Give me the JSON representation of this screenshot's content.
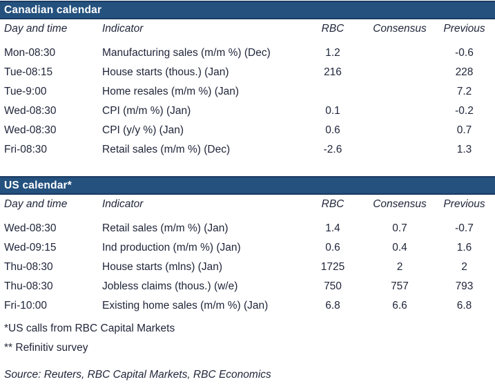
{
  "colors": {
    "bar_fill": "#24517E",
    "bar_border": "#1A3A61",
    "text": "#20263A",
    "bar_title_text": "#FFFFFF"
  },
  "canadian": {
    "title": "Canadian calendar",
    "columns": {
      "day": "Day and time",
      "indicator": "Indicator",
      "rbc": "RBC",
      "consensus": "Consensus",
      "previous": "Previous"
    },
    "rows": [
      {
        "day": "Mon-08:30",
        "indicator": "Manufacturing sales (m/m %) (Dec)",
        "rbc": "1.2",
        "consensus": "",
        "previous": "-0.6"
      },
      {
        "day": "Tue-08:15",
        "indicator": "House starts (thous.) (Jan)",
        "rbc": "216",
        "consensus": "",
        "previous": "228"
      },
      {
        "day": "Tue-9:00",
        "indicator": "Home resales (m/m %) (Jan)",
        "rbc": "",
        "consensus": "",
        "previous": "7.2"
      },
      {
        "day": "Wed-08:30",
        "indicator": "CPI (m/m %) (Jan)",
        "rbc": "0.1",
        "consensus": "",
        "previous": "-0.2"
      },
      {
        "day": "Wed-08:30",
        "indicator": "CPI (y/y %) (Jan)",
        "rbc": "0.6",
        "consensus": "",
        "previous": "0.7"
      },
      {
        "day": "Fri-08:30",
        "indicator": "Retail sales (m/m %) (Dec)",
        "rbc": "-2.6",
        "consensus": "",
        "previous": "1.3"
      }
    ]
  },
  "us": {
    "title": "US calendar*",
    "columns": {
      "day": "Day and time",
      "indicator": "Indicator",
      "rbc": "RBC",
      "consensus": "Consensus",
      "previous": "Previous"
    },
    "rows": [
      {
        "day": "Wed-08:30",
        "indicator": "Retail sales (m/m %) (Jan)",
        "rbc": "1.4",
        "consensus": "0.7",
        "previous": "-0.7"
      },
      {
        "day": "Wed-09:15",
        "indicator": "Ind production (m/m %) (Jan)",
        "rbc": "0.6",
        "consensus": "0.4",
        "previous": "1.6"
      },
      {
        "day": "Thu-08:30",
        "indicator": "House starts (mlns) (Jan)",
        "rbc": "1725",
        "consensus": "2",
        "previous": "2"
      },
      {
        "day": "Thu-08:30",
        "indicator": "Jobless claims (thous.) (w/e)",
        "rbc": "750",
        "consensus": "757",
        "previous": "793"
      },
      {
        "day": "Fri-10:00",
        "indicator": "Existing home sales (m/m %) (Jan)",
        "rbc": "6.8",
        "consensus": "6.6",
        "previous": "6.8"
      }
    ]
  },
  "footnotes": {
    "us_calls": "*US calls from RBC Capital Markets",
    "refinitiv": "** Refinitiv survey",
    "source": "Source: Reuters, RBC Capital Markets, RBC Economics"
  }
}
